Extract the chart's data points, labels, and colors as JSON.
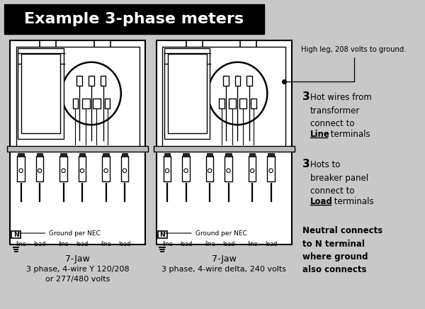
{
  "bg_color": "#c8c8c8",
  "title": "Example 3-phase meters",
  "title_bg": "#000000",
  "title_color": "#ffffff",
  "meter1_label1": "7-Jaw",
  "meter1_label2": "3 phase, 4-wire Y 120/208",
  "meter1_label3": "or 277/480 volts",
  "meter2_label1": "7-Jaw",
  "meter2_label2": "3 phase, 4-wire delta, 240 volts",
  "right_text1_bold": "3",
  "right_text2_bold": "3",
  "right_text3": "Neutral connects\nto N terminal\nwhere ground\nalso connects",
  "high_leg_text": "High leg, 208 volts to ground.",
  "ground_text": "Ground per NEC",
  "neutral_label": "N",
  "line_label": "Line",
  "load_label": "Load",
  "terminals_label": " terminals"
}
